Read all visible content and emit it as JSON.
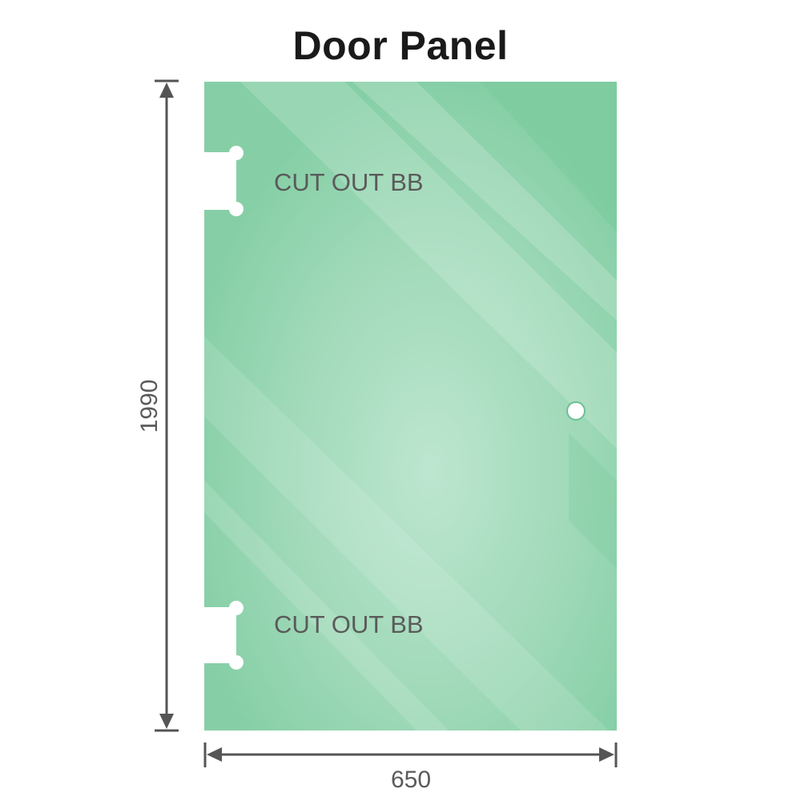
{
  "title": "Door Panel",
  "dimensions": {
    "height": "1990",
    "width": "650"
  },
  "cutouts": [
    {
      "label": "CUT OUT BB"
    },
    {
      "label": "CUT OUT BB"
    }
  ],
  "colors": {
    "glass": "#86cfa6",
    "glass_light": "#b9e4cc",
    "dimension_line": "#555555",
    "label": "#5a5a5a"
  }
}
